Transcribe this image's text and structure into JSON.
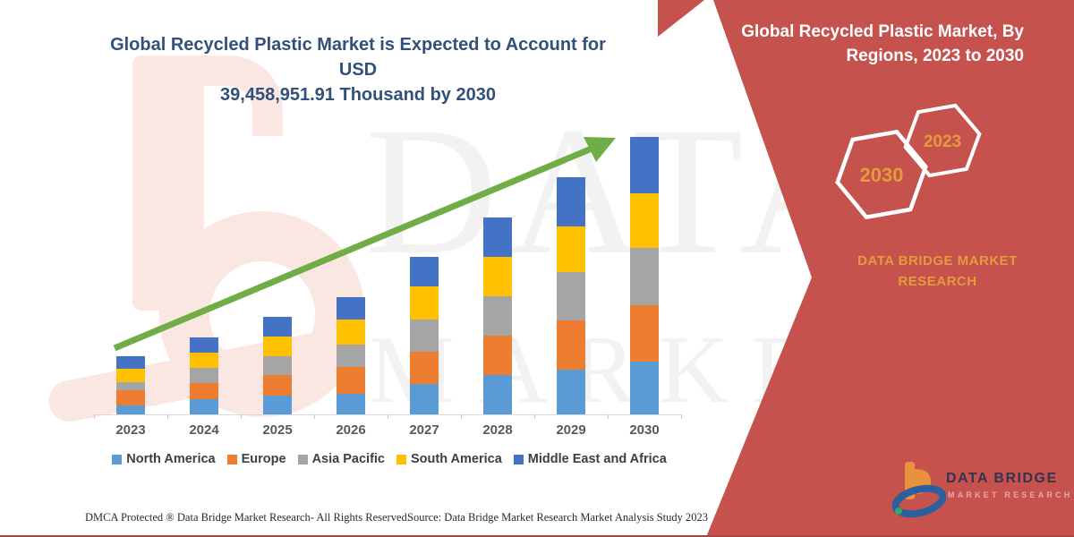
{
  "main_title": {
    "line1": "Global Recycled Plastic Market is Expected to Account for USD",
    "line2": "39,458,951.91 Thousand by 2030"
  },
  "panel": {
    "title_line1": "Global Recycled Plastic Market, By",
    "title_line2": "Regions, 2023 to 2030",
    "hex_large_label": "2030",
    "hex_small_label": "2023",
    "brand_line1": "DATA BRIDGE MARKET",
    "brand_line2": "RESEARCH",
    "colors": {
      "bg": "#C6524D",
      "accent_orange": "#E39B3B",
      "hex_stroke": "#FFFFFF"
    }
  },
  "watermark": {
    "line1": "DATA BRIDGE",
    "line2": "MARKET RESEARCH"
  },
  "logo": {
    "brand": "DATA BRIDGE",
    "sub": "MARKET RESEARCH",
    "icon": "dbmr-b-swirl-logo-icon"
  },
  "footer": {
    "left": "DMCA Protected ® Data Bridge Market Research-  All Rights Reserved.",
    "right": "Source: Data Bridge Market Research  Market Analysis Study 2023"
  },
  "chart_data": {
    "type": "bar",
    "stacked": true,
    "title": "Global Recycled Plastic Market is Expected to Account for USD 39,458,951.91 Thousand by 2030",
    "units": "USD Thousand (values estimated from bar heights; 2030 total stated as 39,458,951.91)",
    "categories": [
      "2023",
      "2024",
      "2025",
      "2026",
      "2027",
      "2028",
      "2029",
      "2030"
    ],
    "series": [
      {
        "name": "North America",
        "color": "#5B9BD5",
        "values": [
          1270000,
          2160000,
          2670000,
          2930000,
          4330000,
          5600000,
          6360000,
          7510000
        ]
      },
      {
        "name": "Europe",
        "color": "#ED7D31",
        "values": [
          2160000,
          2290000,
          2930000,
          3820000,
          4580000,
          5600000,
          7000000,
          8020000
        ]
      },
      {
        "name": "Asia Pacific",
        "color": "#A5A5A5",
        "values": [
          1150000,
          2160000,
          2670000,
          3180000,
          4580000,
          5600000,
          6870000,
          8150000
        ]
      },
      {
        "name": "South America",
        "color": "#FFC000",
        "values": [
          1910000,
          2160000,
          2800000,
          3560000,
          4710000,
          5600000,
          6490000,
          7760000
        ]
      },
      {
        "name": "Middle East and Africa",
        "color": "#4472C4",
        "values": [
          1780000,
          2160000,
          2800000,
          3180000,
          4200000,
          5600000,
          7000000,
          8020000
        ]
      }
    ],
    "totals_estimated": [
      8270000,
      10930000,
      13870000,
      16670000,
      22400000,
      28000000,
      33720000,
      39458951.91
    ],
    "ylim": [
      0,
      40000000
    ],
    "grid": false,
    "y_axis_labels": false,
    "legend_position": "bottom",
    "annotations": [
      "green upward trend arrow from 2023 bar to 2030 bar top"
    ],
    "arrow_color": "#70AD47"
  }
}
